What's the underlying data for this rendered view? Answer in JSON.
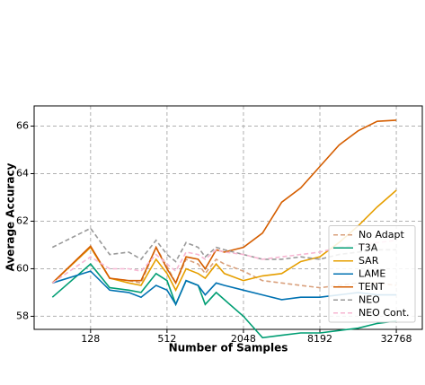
{
  "chart_data": {
    "type": "line",
    "xlabel": "Number of Samples",
    "ylabel": "Average Accuracy",
    "x": [
      64,
      128,
      181,
      256,
      320,
      420,
      512,
      600,
      724,
      900,
      1024,
      1250,
      1448,
      2048,
      2896,
      4096,
      5793,
      8192,
      11585,
      16384,
      23170,
      32768
    ],
    "xscale": "log2",
    "xlim": [
      46,
      52500
    ],
    "xticks": [
      128,
      512,
      2048,
      8192,
      32768
    ],
    "ylim": [
      57.45,
      66.85
    ],
    "yticks": [
      58,
      60,
      62,
      64,
      66
    ],
    "grid": true,
    "legend": "lower right",
    "series": [
      {
        "name": "No Adapt",
        "color": "#d9a07c",
        "style": "dashed",
        "values": [
          59.4,
          60.9,
          59.6,
          59.5,
          59.4,
          60.9,
          60.1,
          59.4,
          60.4,
          60.2,
          59.8,
          60.4,
          60.2,
          59.9,
          59.5,
          59.4,
          59.3,
          59.2,
          59.3,
          59.4,
          59.4,
          59.3
        ]
      },
      {
        "name": "T3A",
        "color": "#009e73",
        "style": "solid",
        "values": [
          58.8,
          60.2,
          59.2,
          59.1,
          59.0,
          59.8,
          59.5,
          58.5,
          59.5,
          59.3,
          58.5,
          59.0,
          58.7,
          58.0,
          57.1,
          57.2,
          57.3,
          57.3,
          57.4,
          57.5,
          57.7,
          57.8
        ]
      },
      {
        "name": "SAR",
        "color": "#e69f00",
        "style": "solid",
        "values": [
          59.4,
          60.9,
          59.6,
          59.4,
          59.3,
          60.4,
          59.8,
          59.1,
          60.0,
          59.8,
          59.6,
          60.2,
          59.8,
          59.5,
          59.7,
          59.8,
          60.3,
          60.5,
          61.1,
          61.8,
          62.6,
          63.3
        ]
      },
      {
        "name": "LAME",
        "color": "#0072b2",
        "style": "solid",
        "values": [
          59.4,
          59.9,
          59.1,
          59.0,
          58.8,
          59.3,
          59.1,
          58.5,
          59.5,
          59.3,
          58.9,
          59.4,
          59.3,
          59.1,
          58.9,
          58.7,
          58.8,
          58.8,
          58.9,
          59.0,
          58.9,
          58.9
        ]
      },
      {
        "name": "TENT",
        "color": "#d55e00",
        "style": "solid",
        "values": [
          59.4,
          60.95,
          59.6,
          59.5,
          59.5,
          60.9,
          60.0,
          59.4,
          60.5,
          60.4,
          60.0,
          60.8,
          60.7,
          60.9,
          61.5,
          62.8,
          63.4,
          64.3,
          65.2,
          65.8,
          66.2,
          66.25
        ]
      },
      {
        "name": "NEO",
        "color": "#999999",
        "style": "dashed",
        "values": [
          60.9,
          61.7,
          60.6,
          60.7,
          60.4,
          61.2,
          60.6,
          60.3,
          61.1,
          60.9,
          60.5,
          60.9,
          60.8,
          60.6,
          60.4,
          60.4,
          60.5,
          60.4,
          60.6,
          60.7,
          60.8,
          60.8
        ]
      },
      {
        "name": "NEO Cont.",
        "color": "#f7b6d2",
        "style": "dashed",
        "values": [
          59.4,
          60.5,
          60.0,
          60.0,
          59.9,
          60.6,
          60.2,
          59.9,
          60.7,
          60.6,
          60.4,
          60.8,
          60.7,
          60.6,
          60.4,
          60.5,
          60.6,
          60.7,
          60.9,
          61.0,
          61.1,
          61.2
        ]
      }
    ]
  }
}
